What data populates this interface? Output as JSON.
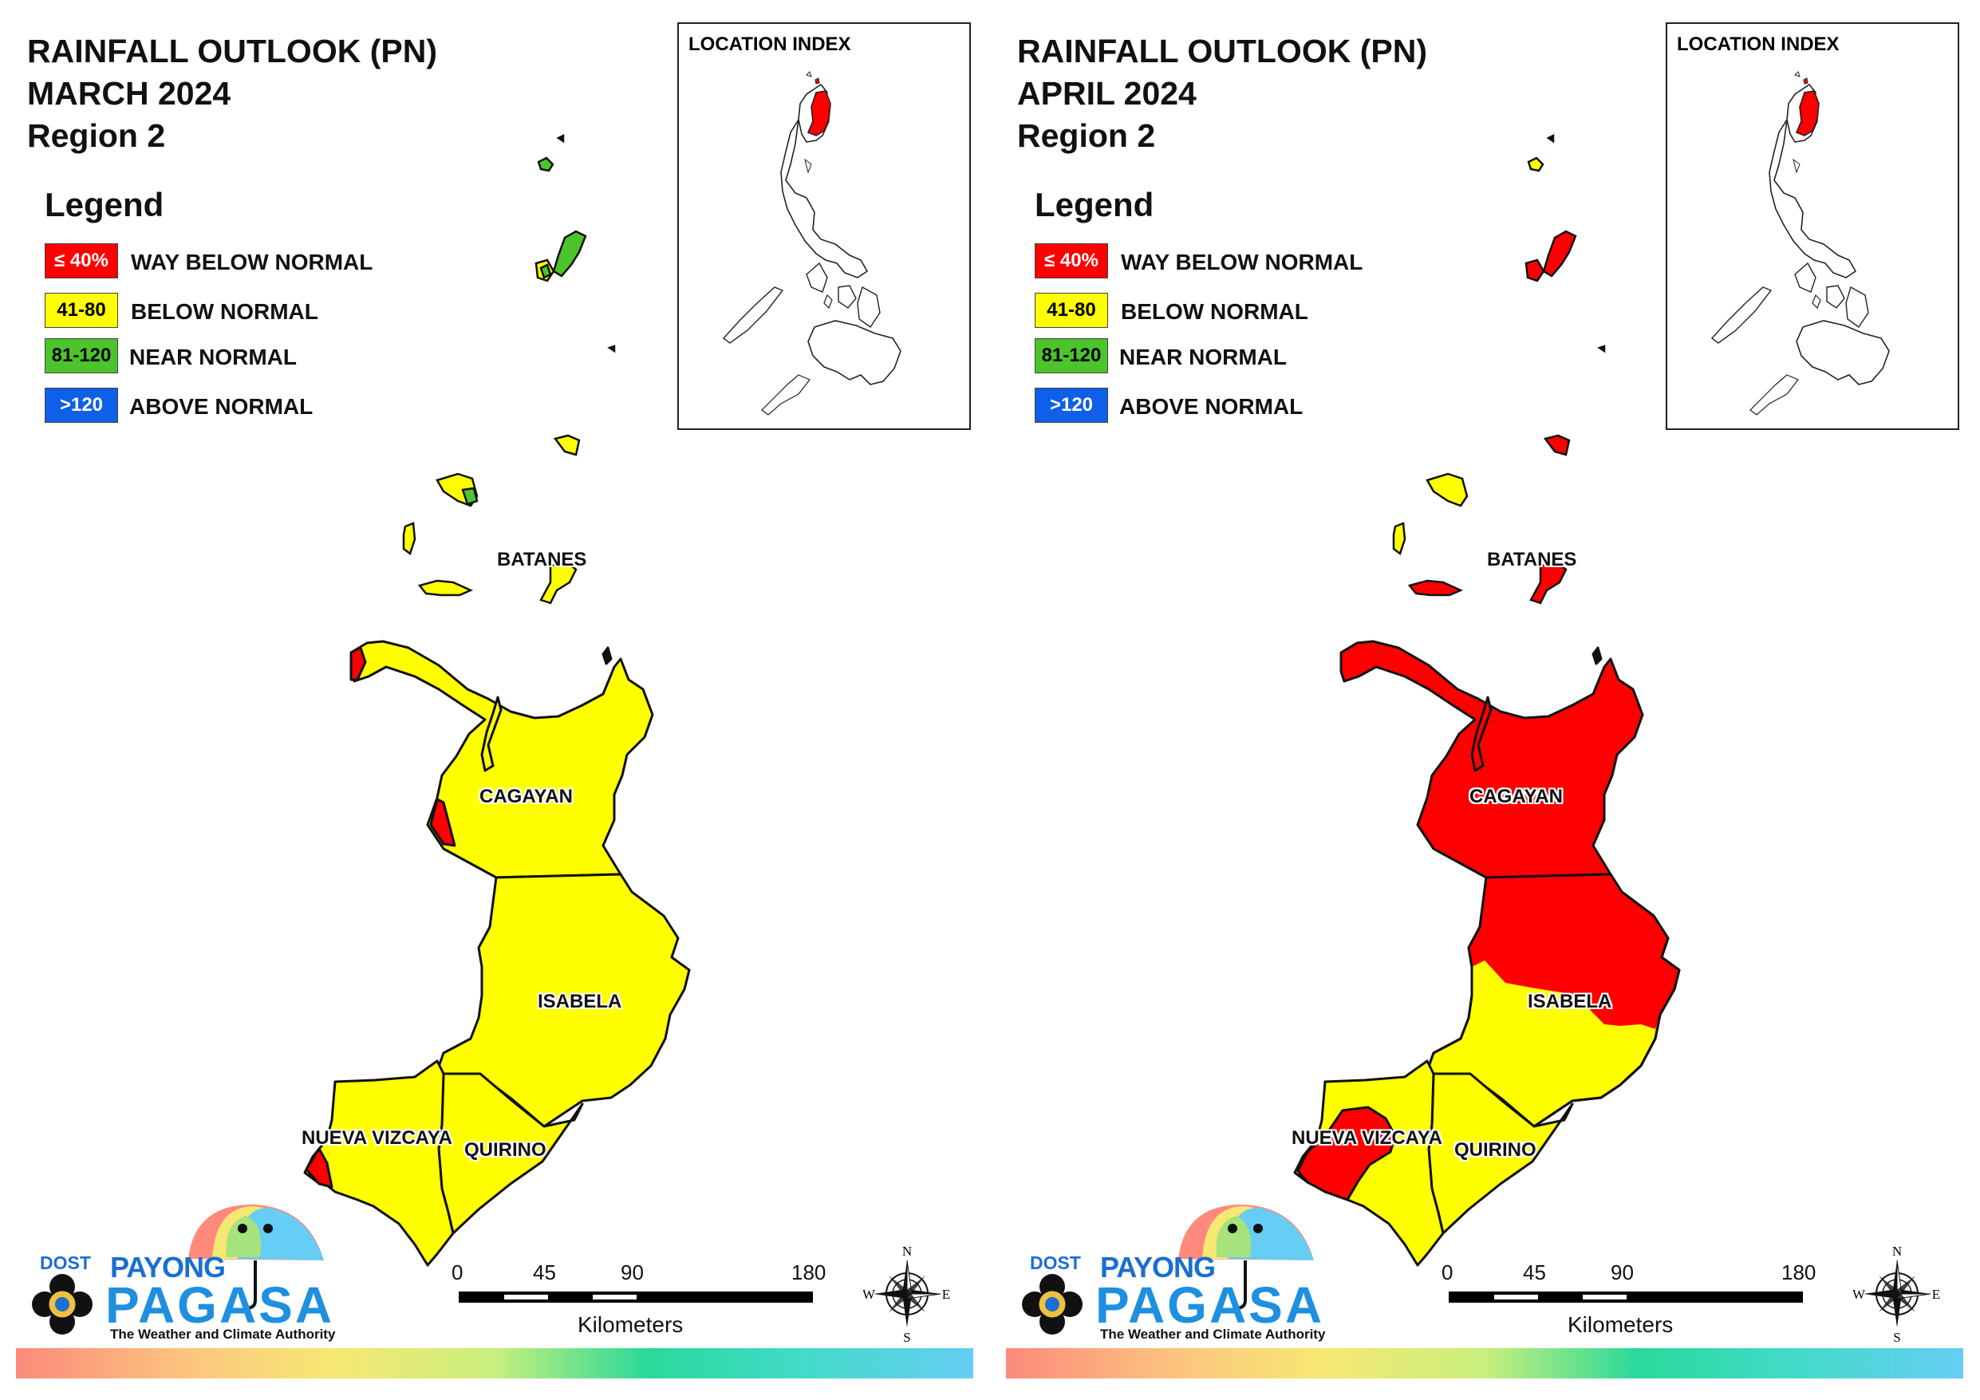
{
  "colors": {
    "way_below": "#ff0000",
    "below": "#ffff00",
    "near": "#4cc42c",
    "above": "#0f5fe8",
    "border": "#000000"
  },
  "legend": {
    "title": "Legend",
    "items": [
      {
        "range": "≤ 40%",
        "label": "WAY BELOW NORMAL",
        "color": "#ff0000",
        "text_color": "#ffffff"
      },
      {
        "range": "41-80",
        "label": "BELOW NORMAL",
        "color": "#ffff00",
        "text_color": "#000000"
      },
      {
        "range": "81-120",
        "label": "NEAR NORMAL",
        "color": "#4cc42c",
        "text_color": "#000000"
      },
      {
        "range": ">120",
        "label": "ABOVE NORMAL",
        "color": "#0f5fe8",
        "text_color": "#ffffff"
      }
    ]
  },
  "index": {
    "label": "LOCATION INDEX"
  },
  "scale": {
    "ticks": [
      "0",
      "45",
      "90",
      "180"
    ],
    "unit": "Kilometers"
  },
  "compass": {
    "n": "N",
    "s": "S",
    "e": "E",
    "w": "W"
  },
  "branding": {
    "dost": "DOST",
    "payong": "PAYONG",
    "pagasa": "PAGASA",
    "tagline": "The Weather and Climate Authority"
  },
  "panels": [
    {
      "title_line1": "RAINFALL OUTLOOK (PN)",
      "title_line2": "MARCH 2024",
      "title_line3": "Region 2",
      "labels": {
        "batanes": "BATANES",
        "cagayan": "CAGAYAN",
        "isabela": "ISABELA",
        "nueva_vizcaya": "NUEVA VIZCAYA",
        "quirino": "QUIRINO"
      },
      "categories": {
        "batanes": "near_normal",
        "babuyan_islands": "below_normal",
        "cagayan": "below_normal",
        "isabela": "below_normal",
        "quirino": "below_normal",
        "nueva_vizcaya": "below_normal"
      }
    },
    {
      "title_line1": "RAINFALL OUTLOOK (PN)",
      "title_line2": "APRIL 2024",
      "title_line3": "Region 2",
      "labels": {
        "batanes": "BATANES",
        "cagayan": "CAGAYAN",
        "isabela": "ISABELA",
        "nueva_vizcaya": "NUEVA VIZCAYA",
        "quirino": "QUIRINO"
      },
      "categories": {
        "batanes": "way_below_normal",
        "babuyan_islands": "way_below_normal",
        "cagayan": "way_below_normal",
        "isabela": "way_below_normal / below_normal",
        "quirino": "below_normal",
        "nueva_vizcaya": "below_normal / way_below_normal"
      }
    }
  ]
}
